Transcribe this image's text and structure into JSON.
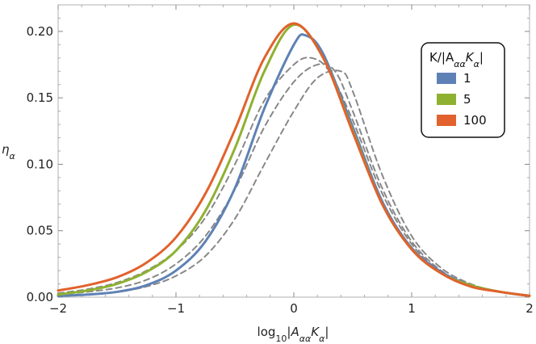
{
  "chart_data": {
    "type": "line",
    "xlabel_parts": {
      "prefix": "log",
      "sub": "10",
      "body": "|A",
      "sub2": "αα",
      "body2": "K",
      "sub3": "α",
      "suffix": "|"
    },
    "ylabel_parts": {
      "body": "η",
      "sub": "α"
    },
    "xlim": [
      -2,
      2
    ],
    "ylim": [
      0,
      0.22
    ],
    "x_ticks": [
      "−2",
      "−1",
      "0",
      "1",
      "2"
    ],
    "y_ticks": [
      "0.00",
      "0.05",
      "0.10",
      "0.15",
      "0.20"
    ],
    "grid": false,
    "legend": {
      "placement": "top-right",
      "title_parts": {
        "prefix": "K/|A",
        "sub": "αα",
        "body": "K",
        "sub2": "α",
        "suffix": "|"
      },
      "entries": [
        "1",
        "5",
        "100"
      ]
    },
    "series": [
      {
        "name": "1",
        "color": "#5E81B5",
        "style": "solid",
        "x": [
          -2,
          -1.75,
          -1.5,
          -1.25,
          -1,
          -0.75,
          -0.5,
          -0.25,
          0,
          0.1,
          0.25,
          0.5,
          0.75,
          1,
          1.25,
          1.5,
          1.75,
          2
        ],
        "y": [
          0.001,
          0.002,
          0.004,
          0.009,
          0.02,
          0.042,
          0.082,
          0.142,
          0.19,
          0.197,
          0.183,
          0.128,
          0.072,
          0.037,
          0.019,
          0.009,
          0.004,
          0.001
        ]
      },
      {
        "name": "5",
        "color": "#8FB131",
        "style": "solid",
        "x": [
          -2,
          -1.75,
          -1.5,
          -1.25,
          -1,
          -0.75,
          -0.5,
          -0.25,
          0,
          0.25,
          0.5,
          0.75,
          1,
          1.25,
          1.5,
          1.75,
          2
        ],
        "y": [
          0.002,
          0.005,
          0.01,
          0.019,
          0.035,
          0.065,
          0.112,
          0.17,
          0.205,
          0.18,
          0.125,
          0.07,
          0.036,
          0.018,
          0.009,
          0.004,
          0.001
        ]
      },
      {
        "name": "100",
        "color": "#E1622C",
        "style": "solid",
        "x": [
          -2,
          -1.75,
          -1.5,
          -1.25,
          -1,
          -0.75,
          -0.5,
          -0.25,
          0,
          0.25,
          0.5,
          0.75,
          1,
          1.25,
          1.5,
          1.75,
          2
        ],
        "y": [
          0.005,
          0.009,
          0.015,
          0.026,
          0.045,
          0.078,
          0.126,
          0.18,
          0.206,
          0.18,
          0.124,
          0.07,
          0.036,
          0.018,
          0.008,
          0.004,
          0.001
        ]
      },
      {
        "color": "#888888",
        "style": "dashed",
        "x": [
          -2,
          -1.75,
          -1.5,
          -1.25,
          -1,
          -0.75,
          -0.5,
          -0.25,
          0,
          0.15,
          0.3,
          0.5,
          0.75,
          1,
          1.25,
          1.5,
          1.75,
          2
        ],
        "y": [
          0.003,
          0.006,
          0.011,
          0.02,
          0.035,
          0.06,
          0.1,
          0.148,
          0.175,
          0.18,
          0.17,
          0.133,
          0.078,
          0.04,
          0.019,
          0.009,
          0.004,
          0.001
        ]
      },
      {
        "color": "#888888",
        "style": "dashed",
        "x": [
          -2,
          -1.75,
          -1.5,
          -1.25,
          -1,
          -0.75,
          -0.5,
          -0.25,
          0,
          0.2,
          0.35,
          0.5,
          0.75,
          1,
          1.25,
          1.5,
          1.75,
          2
        ],
        "y": [
          0.002,
          0.004,
          0.007,
          0.013,
          0.025,
          0.046,
          0.081,
          0.128,
          0.162,
          0.175,
          0.17,
          0.14,
          0.082,
          0.042,
          0.02,
          0.009,
          0.004,
          0.001
        ]
      },
      {
        "color": "#888888",
        "style": "dashed",
        "x": [
          -2,
          -1.75,
          -1.5,
          -1.25,
          -1,
          -0.75,
          -0.5,
          -0.25,
          0,
          0.2,
          0.4,
          0.5,
          0.75,
          1,
          1.25,
          1.5,
          1.75,
          2
        ],
        "y": [
          0.001,
          0.002,
          0.004,
          0.008,
          0.016,
          0.031,
          0.059,
          0.1,
          0.14,
          0.165,
          0.17,
          0.155,
          0.092,
          0.046,
          0.022,
          0.01,
          0.004,
          0.001
        ]
      }
    ]
  }
}
